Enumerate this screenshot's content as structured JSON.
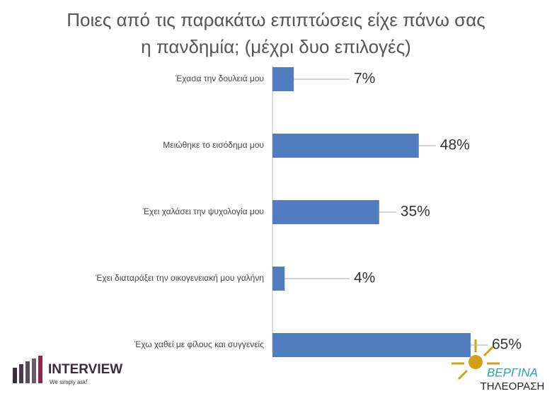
{
  "chart_data": {
    "type": "bar",
    "orientation": "horizontal",
    "title": "Ποιες από τις παρακάτω επιπτώσεις είχε πάνω σας",
    "subtitle": "η πανδημία; (μέχρι δυο επιλογές)",
    "categories": [
      "Έχασα την δουλειά μου",
      "Μειώθηκε το εισόδημα μου",
      "Έχει χαλάσει την ψυχολογία μου",
      "Έχει διαταράξει την οικογενειακή μου γαλήνη",
      "Έχω χαθεί με φίλους και συγγενείς"
    ],
    "values": [
      7,
      48,
      35,
      4,
      65
    ],
    "value_labels": [
      "7%",
      "48%",
      "35%",
      "4%",
      "65%"
    ],
    "color": "#4f7dbf"
  },
  "logos": {
    "left_name": "INTERVIEW",
    "left_slogan": "We simply ask!",
    "right_name": "ΒΕΡΓΙΝΑ",
    "right_sub": "ΤΗΛΕΟΡΑΣΗ"
  }
}
